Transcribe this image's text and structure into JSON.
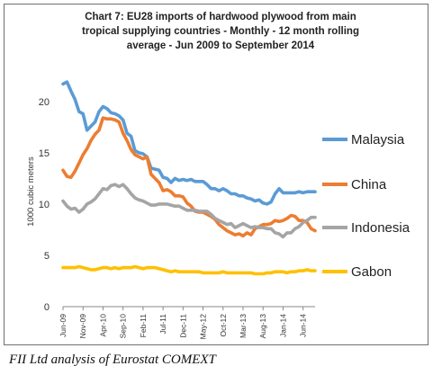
{
  "caption": "FII Ltd analysis of Eurostat COMEXT",
  "chart_data": {
    "type": "line",
    "title_lines": [
      "Chart 7: EU28 imports of hardwood plywood from main",
      "tropical supplying countries - Monthly - 12 month rolling",
      "average - Jun 2009 to September 2014"
    ],
    "ylabel": "1000 cubic meters",
    "xlabel": "",
    "ylim": [
      0,
      22
    ],
    "yticks": [
      0,
      5,
      10,
      15,
      20
    ],
    "grid": false,
    "legend_position": "right",
    "x_tick_labels": [
      "Jun-09",
      "Nov-09",
      "Apr-10",
      "Sep-10",
      "Feb-11",
      "Jul-11",
      "Dec-11",
      "May-12",
      "Oct-12",
      "Mar-13",
      "Aug-13",
      "Jan-14",
      "Jun-14"
    ],
    "x": [
      "Jun-09",
      "Jul-09",
      "Aug-09",
      "Sep-09",
      "Oct-09",
      "Nov-09",
      "Dec-09",
      "Jan-10",
      "Feb-10",
      "Mar-10",
      "Apr-10",
      "May-10",
      "Jun-10",
      "Jul-10",
      "Aug-10",
      "Sep-10",
      "Oct-10",
      "Nov-10",
      "Dec-10",
      "Jan-11",
      "Feb-11",
      "Mar-11",
      "Apr-11",
      "May-11",
      "Jun-11",
      "Jul-11",
      "Aug-11",
      "Sep-11",
      "Oct-11",
      "Nov-11",
      "Dec-11",
      "Jan-12",
      "Feb-12",
      "Mar-12",
      "Apr-12",
      "May-12",
      "Jun-12",
      "Jul-12",
      "Aug-12",
      "Sep-12",
      "Oct-12",
      "Nov-12",
      "Dec-12",
      "Jan-13",
      "Feb-13",
      "Mar-13",
      "Apr-13",
      "May-13",
      "Jun-13",
      "Jul-13",
      "Aug-13",
      "Sep-13",
      "Oct-13",
      "Nov-13",
      "Dec-13",
      "Jan-14",
      "Feb-14",
      "Mar-14",
      "Apr-14",
      "May-14",
      "Jun-14",
      "Jul-14",
      "Aug-14",
      "Sep-14"
    ],
    "series": [
      {
        "name": "Malaysia",
        "color": "#5b9bd5",
        "values": [
          21.7,
          21.9,
          21.0,
          20.2,
          19.0,
          18.8,
          17.2,
          17.6,
          18.0,
          19.0,
          19.5,
          19.3,
          18.9,
          18.8,
          18.6,
          18.2,
          16.9,
          16.6,
          15.2,
          15.0,
          14.9,
          14.6,
          13.5,
          13.4,
          13.3,
          12.6,
          12.5,
          12.1,
          12.5,
          12.3,
          12.4,
          12.3,
          12.4,
          12.2,
          12.2,
          12.2,
          11.9,
          11.5,
          11.5,
          11.3,
          11.5,
          11.3,
          11.0,
          11.0,
          10.8,
          10.8,
          10.6,
          10.5,
          10.3,
          10.4,
          10.1,
          10.0,
          10.2,
          11.0,
          11.5,
          11.1,
          11.1,
          11.1,
          11.1,
          11.2,
          11.1,
          11.2,
          11.2,
          11.2
        ]
      },
      {
        "name": "China",
        "color": "#ed7d31",
        "values": [
          13.3,
          12.7,
          12.6,
          13.2,
          14.0,
          14.8,
          15.4,
          16.2,
          16.8,
          17.2,
          18.4,
          18.3,
          18.3,
          18.2,
          18.0,
          16.9,
          16.2,
          15.3,
          14.8,
          14.6,
          14.4,
          14.6,
          12.9,
          12.5,
          12.1,
          11.3,
          11.4,
          11.2,
          10.8,
          10.8,
          10.7,
          10.1,
          9.8,
          9.3,
          9.2,
          9.2,
          9.0,
          8.8,
          8.5,
          8.0,
          7.7,
          7.4,
          7.2,
          7.0,
          7.1,
          6.9,
          7.2,
          7.0,
          7.6,
          7.8,
          8.0,
          8.0,
          8.1,
          8.4,
          8.3,
          8.4,
          8.6,
          8.9,
          8.8,
          8.4,
          8.4,
          8.2,
          7.6,
          7.4
        ]
      },
      {
        "name": "Indonesia",
        "color": "#a5a5a5",
        "values": [
          10.3,
          9.8,
          9.5,
          9.6,
          9.2,
          9.5,
          10.0,
          10.2,
          10.5,
          11.0,
          11.5,
          11.4,
          11.8,
          11.9,
          11.7,
          11.9,
          11.5,
          11.0,
          10.6,
          10.4,
          10.3,
          10.1,
          9.9,
          9.9,
          10.0,
          10.0,
          10.0,
          9.9,
          9.8,
          9.8,
          9.6,
          9.4,
          9.4,
          9.4,
          9.3,
          9.3,
          9.3,
          9.0,
          8.6,
          8.4,
          8.2,
          8.0,
          8.1,
          7.7,
          7.9,
          8.1,
          7.9,
          7.7,
          7.8,
          7.7,
          7.7,
          7.6,
          7.6,
          7.2,
          7.1,
          6.8,
          7.2,
          7.2,
          7.6,
          7.8,
          8.2,
          8.4,
          8.7,
          8.7
        ]
      },
      {
        "name": "Gabon",
        "color": "#ffc000",
        "values": [
          3.8,
          3.8,
          3.8,
          3.8,
          3.9,
          3.8,
          3.7,
          3.6,
          3.6,
          3.7,
          3.8,
          3.8,
          3.7,
          3.8,
          3.7,
          3.8,
          3.8,
          3.8,
          3.9,
          3.8,
          3.7,
          3.8,
          3.8,
          3.8,
          3.7,
          3.6,
          3.5,
          3.4,
          3.5,
          3.4,
          3.4,
          3.4,
          3.4,
          3.4,
          3.4,
          3.3,
          3.3,
          3.3,
          3.3,
          3.3,
          3.4,
          3.3,
          3.3,
          3.3,
          3.3,
          3.3,
          3.3,
          3.3,
          3.2,
          3.2,
          3.2,
          3.3,
          3.3,
          3.4,
          3.4,
          3.4,
          3.3,
          3.4,
          3.4,
          3.5,
          3.5,
          3.6,
          3.5,
          3.5
        ]
      }
    ]
  }
}
